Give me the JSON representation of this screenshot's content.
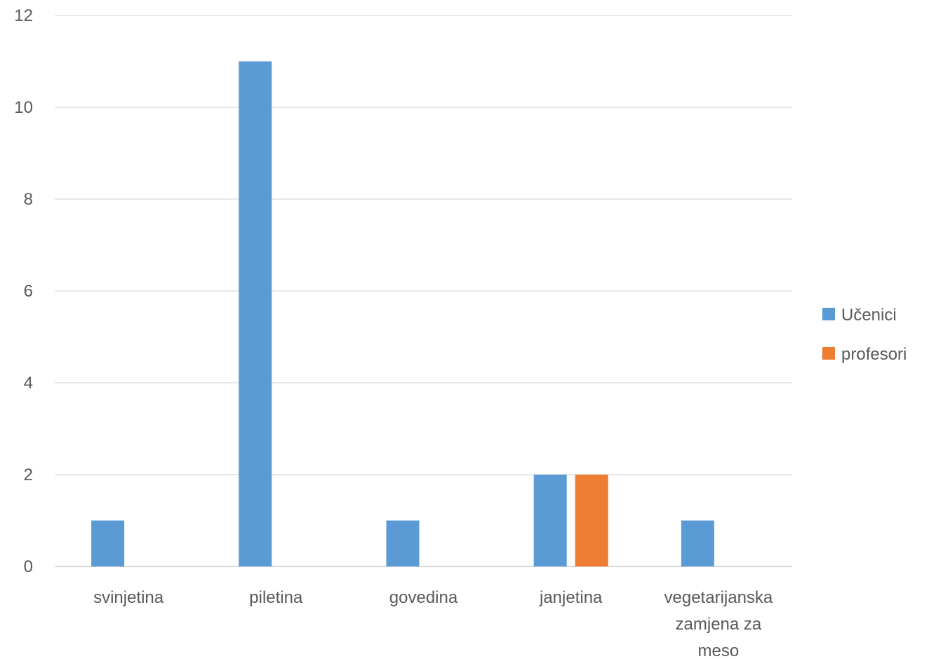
{
  "chart_data": {
    "type": "bar",
    "categories": [
      [
        "svinjetina"
      ],
      [
        "piletina"
      ],
      [
        "govedina"
      ],
      [
        "janjetina"
      ],
      [
        "vegetarijanska",
        "zamjena za",
        "meso"
      ]
    ],
    "series": [
      {
        "name": "Učenici",
        "color": "#5B9BD5",
        "values": [
          1,
          11,
          1,
          2,
          1
        ]
      },
      {
        "name": "profesori",
        "color": "#ED7D31",
        "values": [
          0,
          0,
          0,
          2,
          0
        ]
      }
    ],
    "ylim": [
      0,
      12
    ],
    "yticks": [
      0,
      2,
      4,
      6,
      8,
      10,
      12
    ],
    "grid": true,
    "legend_position": "right"
  }
}
